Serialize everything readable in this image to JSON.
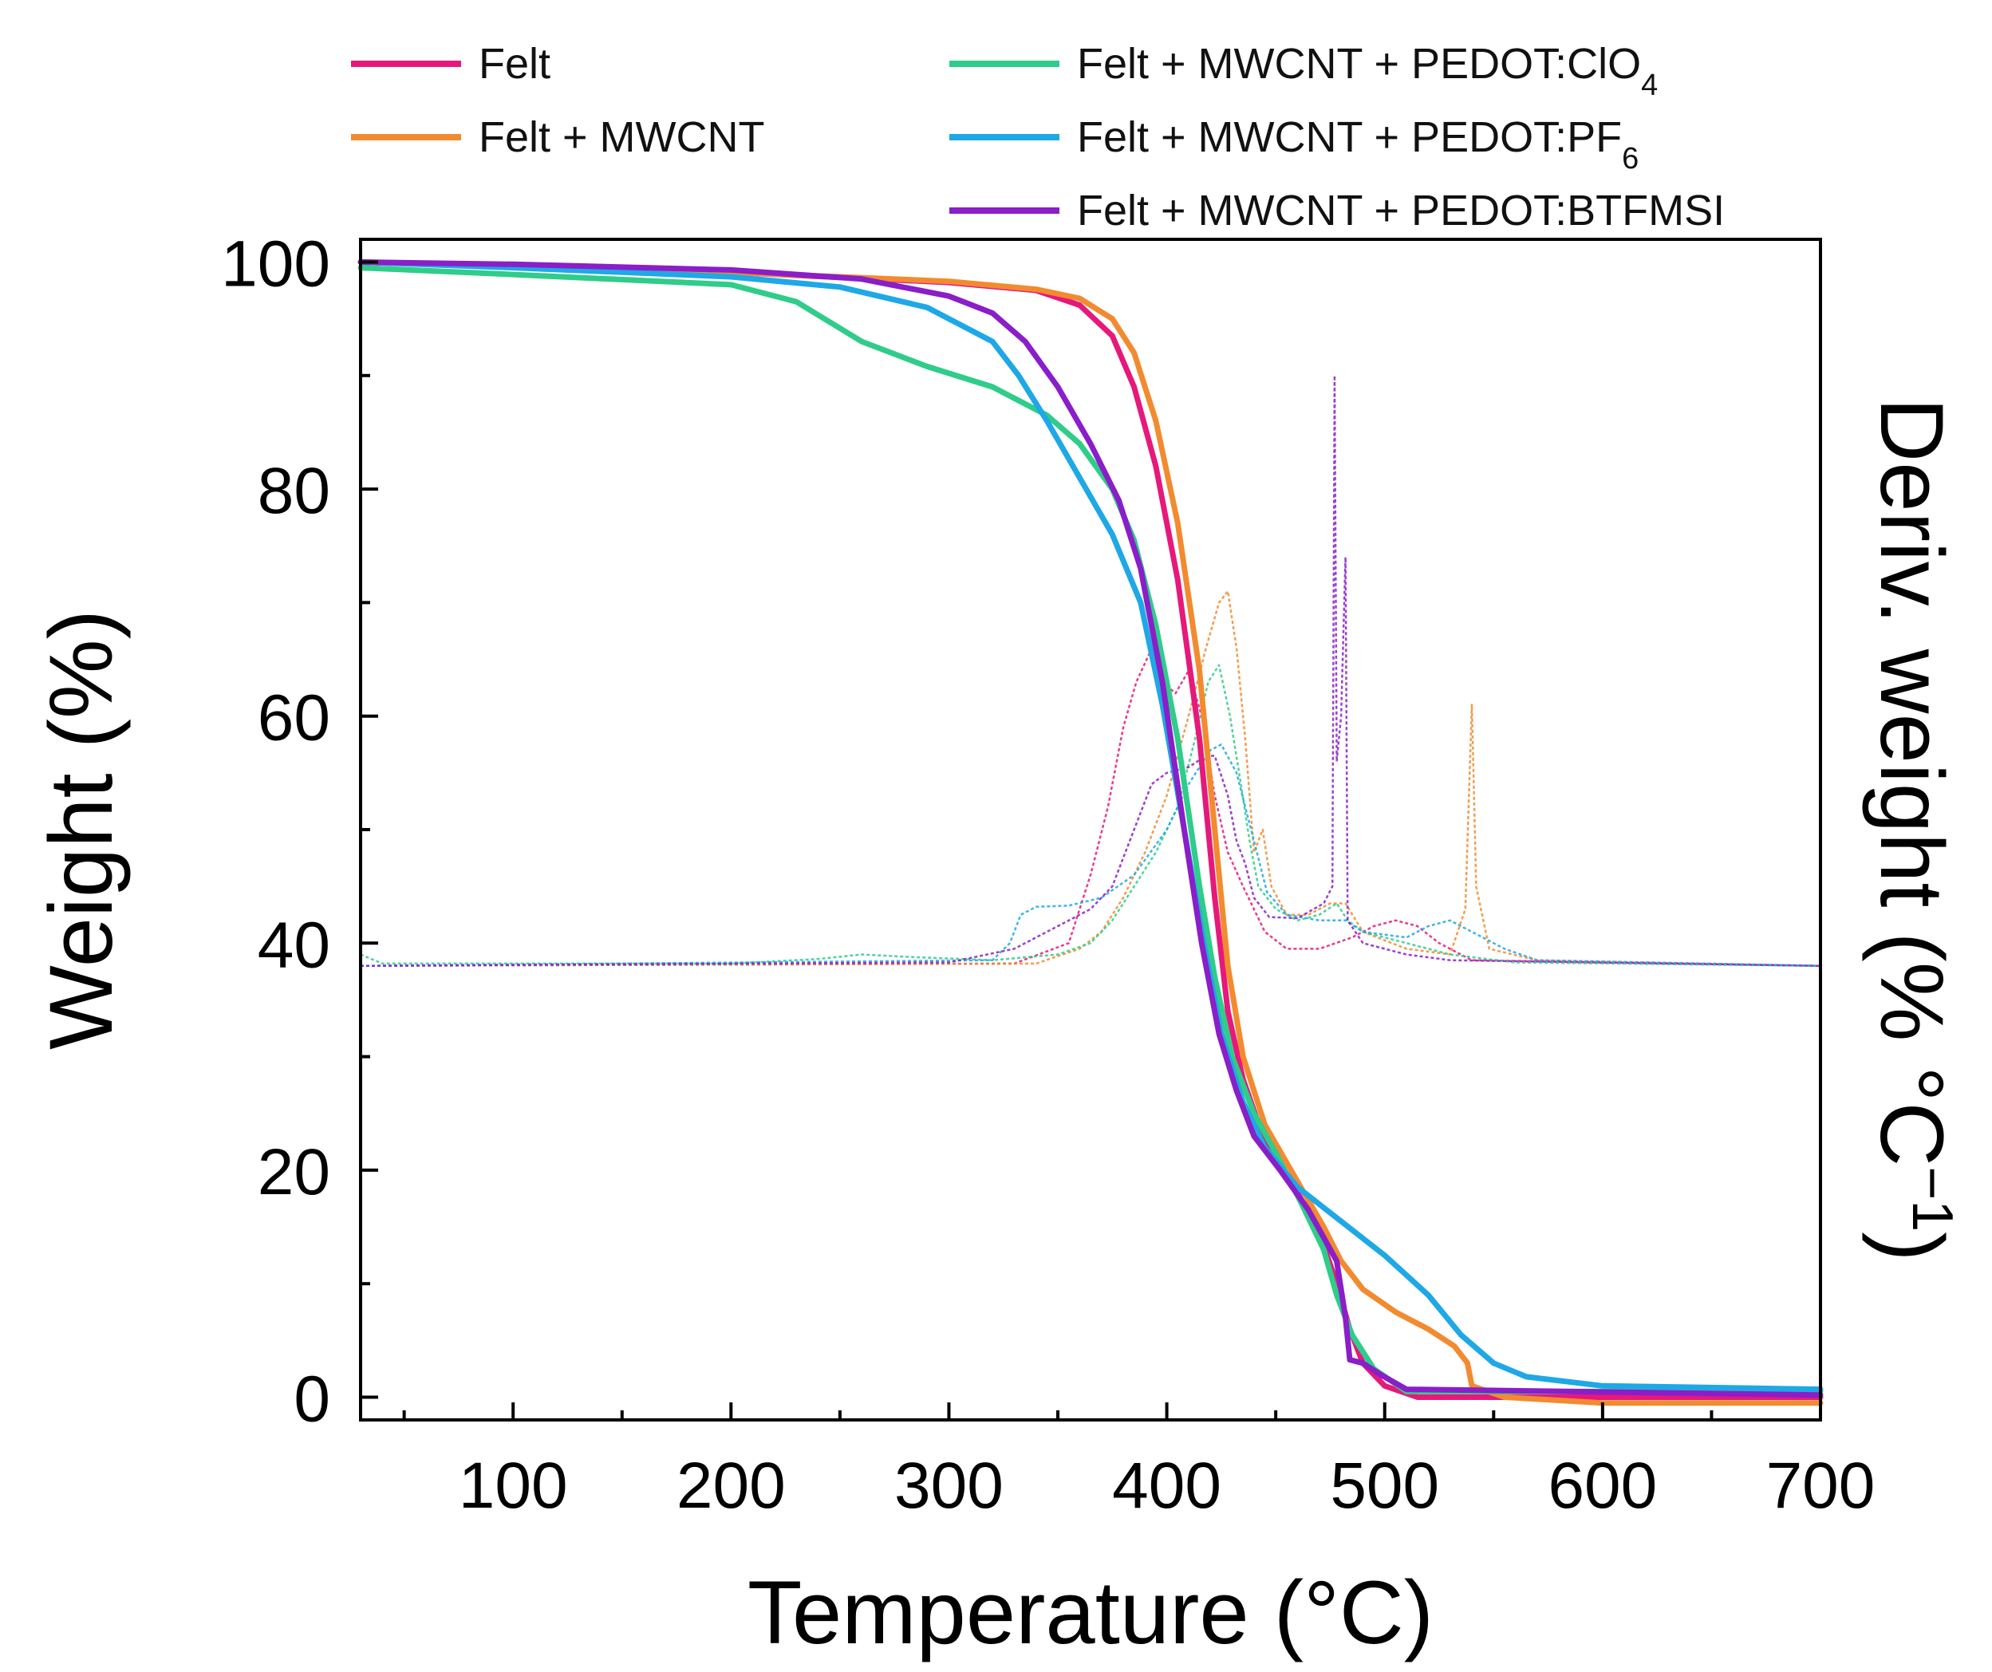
{
  "chart_data": {
    "type": "line",
    "title": "",
    "xlabel": "Temperature (°C)",
    "ylabel": "Weight (%)",
    "y2label": {
      "main": "Deriv. weight (% °C",
      "sup": "−1",
      "close": ")"
    },
    "xlim": [
      30,
      700
    ],
    "ylim": [
      -2,
      102
    ],
    "x_ticks": [
      100,
      200,
      300,
      400,
      500,
      600,
      700
    ],
    "y_ticks": [
      0,
      20,
      40,
      60,
      80,
      100
    ],
    "grid": false,
    "legend_position": "top",
    "series": [
      {
        "name": "Felt",
        "label_main": "Felt",
        "label_sub": "",
        "color": "#E6197A",
        "weight": [
          [
            30,
            100
          ],
          [
            100,
            99.6
          ],
          [
            200,
            99.1
          ],
          [
            300,
            98.2
          ],
          [
            340,
            97.5
          ],
          [
            360,
            96.2
          ],
          [
            375,
            93.5
          ],
          [
            385,
            89
          ],
          [
            395,
            82
          ],
          [
            405,
            72
          ],
          [
            415,
            58
          ],
          [
            422,
            44
          ],
          [
            428,
            34
          ],
          [
            435,
            28
          ],
          [
            445,
            22.5
          ],
          [
            460,
            18
          ],
          [
            470,
            14.5
          ],
          [
            478,
            10
          ],
          [
            484,
            6
          ],
          [
            490,
            3
          ],
          [
            500,
            1
          ],
          [
            515,
            0
          ],
          [
            700,
            0
          ]
        ],
        "deriv": [
          [
            30,
            38
          ],
          [
            330,
            38.2
          ],
          [
            355,
            40
          ],
          [
            365,
            46
          ],
          [
            373,
            52
          ],
          [
            380,
            59
          ],
          [
            386,
            63
          ],
          [
            392,
            65.5
          ],
          [
            398,
            63
          ],
          [
            404,
            62
          ],
          [
            410,
            64
          ],
          [
            416,
            60
          ],
          [
            422,
            53
          ],
          [
            428,
            48
          ],
          [
            435,
            45
          ],
          [
            445,
            41
          ],
          [
            455,
            39.5
          ],
          [
            470,
            39.5
          ],
          [
            485,
            40.5
          ],
          [
            495,
            41.5
          ],
          [
            505,
            42
          ],
          [
            515,
            41.5
          ],
          [
            525,
            40
          ],
          [
            540,
            38.5
          ],
          [
            700,
            38
          ]
        ]
      },
      {
        "name": "Felt + MWCNT",
        "label_main": "Felt + MWCNT",
        "label_sub": "",
        "color": "#F28B30",
        "weight": [
          [
            30,
            100
          ],
          [
            100,
            99.6
          ],
          [
            200,
            99.1
          ],
          [
            300,
            98.3
          ],
          [
            340,
            97.6
          ],
          [
            360,
            96.8
          ],
          [
            375,
            95
          ],
          [
            385,
            92
          ],
          [
            395,
            86
          ],
          [
            405,
            77
          ],
          [
            415,
            64
          ],
          [
            422,
            50
          ],
          [
            428,
            38
          ],
          [
            435,
            30
          ],
          [
            445,
            24
          ],
          [
            460,
            19
          ],
          [
            472,
            15
          ],
          [
            480,
            12
          ],
          [
            490,
            9.5
          ],
          [
            505,
            7.5
          ],
          [
            520,
            6
          ],
          [
            532,
            4.5
          ],
          [
            538,
            3
          ],
          [
            540,
            1
          ],
          [
            555,
            0
          ],
          [
            600,
            -0.5
          ],
          [
            700,
            -0.5
          ]
        ],
        "deriv": [
          [
            30,
            38
          ],
          [
            340,
            38.2
          ],
          [
            360,
            39.5
          ],
          [
            370,
            41
          ],
          [
            380,
            44
          ],
          [
            390,
            48
          ],
          [
            400,
            53
          ],
          [
            410,
            60
          ],
          [
            418,
            66
          ],
          [
            424,
            70
          ],
          [
            428,
            71
          ],
          [
            432,
            66
          ],
          [
            436,
            58
          ],
          [
            440,
            48
          ],
          [
            444,
            50
          ],
          [
            448,
            45
          ],
          [
            455,
            42.5
          ],
          [
            465,
            42.5
          ],
          [
            475,
            43.5
          ],
          [
            482,
            43.5
          ],
          [
            490,
            41
          ],
          [
            510,
            39.5
          ],
          [
            530,
            39
          ],
          [
            537,
            43
          ],
          [
            540,
            61
          ],
          [
            542,
            45
          ],
          [
            548,
            39.5
          ],
          [
            570,
            38.5
          ],
          [
            700,
            38
          ]
        ]
      },
      {
        "name": "Felt + MWCNT + PEDOT:ClO4",
        "label_main": "Felt + MWCNT + PEDOT:ClO",
        "label_sub": "4",
        "color": "#2FCC8A",
        "weight": [
          [
            30,
            99.5
          ],
          [
            100,
            98.9
          ],
          [
            200,
            98
          ],
          [
            230,
            96.5
          ],
          [
            260,
            93
          ],
          [
            290,
            90.8
          ],
          [
            320,
            89
          ],
          [
            345,
            86.5
          ],
          [
            360,
            84
          ],
          [
            375,
            80
          ],
          [
            385,
            75.5
          ],
          [
            395,
            68
          ],
          [
            405,
            58
          ],
          [
            415,
            45
          ],
          [
            422,
            37
          ],
          [
            430,
            30
          ],
          [
            440,
            25
          ],
          [
            450,
            21.5
          ],
          [
            462,
            17
          ],
          [
            472,
            13
          ],
          [
            478,
            9
          ],
          [
            485,
            5.5
          ],
          [
            495,
            2.5
          ],
          [
            510,
            0.5
          ],
          [
            700,
            0.5
          ]
        ],
        "deriv": [
          [
            30,
            39
          ],
          [
            40,
            38.2
          ],
          [
            60,
            38.2
          ],
          [
            200,
            38.2
          ],
          [
            240,
            38.6
          ],
          [
            260,
            39
          ],
          [
            280,
            38.8
          ],
          [
            320,
            38.5
          ],
          [
            350,
            39
          ],
          [
            365,
            40
          ],
          [
            375,
            42
          ],
          [
            385,
            45
          ],
          [
            395,
            48
          ],
          [
            405,
            52
          ],
          [
            413,
            58
          ],
          [
            419,
            63
          ],
          [
            424,
            64.5
          ],
          [
            429,
            60
          ],
          [
            434,
            54
          ],
          [
            438,
            49
          ],
          [
            442,
            45
          ],
          [
            450,
            43
          ],
          [
            460,
            42
          ],
          [
            470,
            42.5
          ],
          [
            478,
            43.5
          ],
          [
            483,
            42
          ],
          [
            490,
            41
          ],
          [
            510,
            40
          ],
          [
            530,
            39
          ],
          [
            560,
            38.3
          ],
          [
            700,
            38
          ]
        ]
      },
      {
        "name": "Felt + MWCNT + PEDOT:PF6",
        "label_main": "Felt + MWCNT + PEDOT:PF",
        "label_sub": "6",
        "color": "#1EA8E6",
        "weight": [
          [
            30,
            100
          ],
          [
            100,
            99.5
          ],
          [
            200,
            98.7
          ],
          [
            250,
            97.8
          ],
          [
            290,
            96
          ],
          [
            320,
            93
          ],
          [
            332,
            90
          ],
          [
            345,
            86
          ],
          [
            360,
            81
          ],
          [
            375,
            76
          ],
          [
            388,
            70
          ],
          [
            398,
            61
          ],
          [
            408,
            50
          ],
          [
            417,
            40
          ],
          [
            425,
            32
          ],
          [
            435,
            26
          ],
          [
            445,
            22
          ],
          [
            460,
            18.5
          ],
          [
            480,
            15.5
          ],
          [
            500,
            12.5
          ],
          [
            520,
            9
          ],
          [
            535,
            5.5
          ],
          [
            550,
            3
          ],
          [
            565,
            1.8
          ],
          [
            600,
            1
          ],
          [
            700,
            0.7
          ]
        ],
        "deriv": [
          [
            30,
            38
          ],
          [
            320,
            38.5
          ],
          [
            328,
            40
          ],
          [
            333,
            42.5
          ],
          [
            340,
            43.2
          ],
          [
            355,
            43.3
          ],
          [
            370,
            44
          ],
          [
            385,
            46
          ],
          [
            400,
            50
          ],
          [
            410,
            54
          ],
          [
            420,
            57
          ],
          [
            425,
            57.5
          ],
          [
            432,
            55
          ],
          [
            440,
            49
          ],
          [
            446,
            44.5
          ],
          [
            455,
            42.5
          ],
          [
            470,
            42
          ],
          [
            482,
            42
          ],
          [
            490,
            41
          ],
          [
            510,
            40.5
          ],
          [
            520,
            41.5
          ],
          [
            530,
            42
          ],
          [
            540,
            41
          ],
          [
            555,
            39.5
          ],
          [
            570,
            38.5
          ],
          [
            700,
            38
          ]
        ]
      },
      {
        "name": "Felt + MWCNT + PEDOT:BTFMSI",
        "label_main": "Felt + MWCNT + PEDOT:BTFMSI",
        "label_sub": "",
        "color": "#8A1EC8",
        "weight": [
          [
            30,
            100
          ],
          [
            100,
            99.8
          ],
          [
            200,
            99.3
          ],
          [
            260,
            98.5
          ],
          [
            300,
            97
          ],
          [
            320,
            95.5
          ],
          [
            335,
            93
          ],
          [
            350,
            89
          ],
          [
            365,
            84
          ],
          [
            378,
            79
          ],
          [
            388,
            73
          ],
          [
            398,
            63
          ],
          [
            408,
            50
          ],
          [
            416,
            40
          ],
          [
            424,
            32
          ],
          [
            432,
            27
          ],
          [
            440,
            23
          ],
          [
            452,
            20
          ],
          [
            465,
            16.5
          ],
          [
            478,
            12
          ],
          [
            482,
            7
          ],
          [
            484,
            3.3
          ],
          [
            490,
            3
          ],
          [
            498,
            2
          ],
          [
            510,
            0.7
          ],
          [
            700,
            0.2
          ]
        ],
        "deriv": [
          [
            30,
            38
          ],
          [
            300,
            38.3
          ],
          [
            330,
            39.5
          ],
          [
            350,
            41.5
          ],
          [
            365,
            43
          ],
          [
            375,
            45
          ],
          [
            385,
            50
          ],
          [
            393,
            54
          ],
          [
            400,
            55
          ],
          [
            410,
            55.5
          ],
          [
            418,
            56.5
          ],
          [
            422,
            56.5
          ],
          [
            428,
            53
          ],
          [
            432,
            49
          ],
          [
            436,
            47
          ],
          [
            440,
            44
          ],
          [
            447,
            42.3
          ],
          [
            460,
            42.2
          ],
          [
            472,
            43.5
          ],
          [
            476,
            45
          ],
          [
            477,
            90
          ],
          [
            478,
            56
          ],
          [
            480,
            60
          ],
          [
            482,
            74
          ],
          [
            483,
            42
          ],
          [
            490,
            40
          ],
          [
            510,
            39
          ],
          [
            530,
            38.5
          ],
          [
            700,
            38
          ]
        ]
      }
    ]
  }
}
